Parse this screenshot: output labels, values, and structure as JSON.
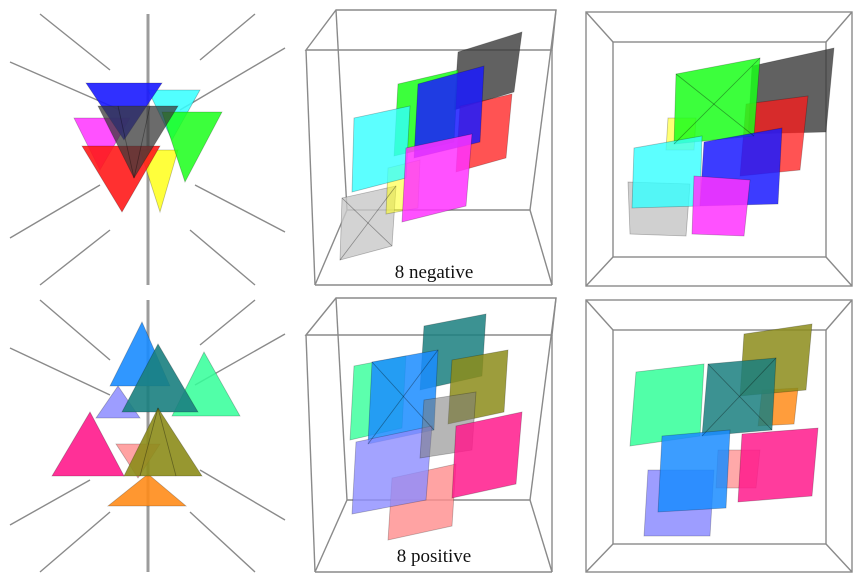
{
  "captions": {
    "top": "8 negative",
    "bottom": "8 positive"
  },
  "colors": {
    "negative": {
      "blue": "#1a1aff",
      "cyan": "#33ffff",
      "magenta": "#ff33ff",
      "green": "#1aff1a",
      "red": "#ff1a1a",
      "yellow": "#ffff1a",
      "gray_dark": "#3a3a3a",
      "gray_light": "#c8c8c8"
    },
    "positive": {
      "azure": "#1a8cff",
      "teal": "#1a7f7f",
      "spring_green": "#33ff99",
      "violet": "#8c8cff",
      "rose": "#ff1a8c",
      "olive": "#8c8c1a",
      "orange": "#ff8c1a",
      "salmon": "#ff8c8c"
    },
    "frame": "#8a8a8a"
  }
}
